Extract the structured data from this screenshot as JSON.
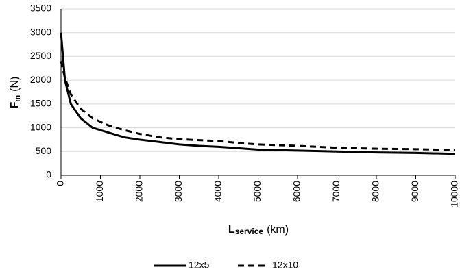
{
  "chart_data": {
    "type": "line",
    "ylabel": [
      "F",
      "m",
      "(N)"
    ],
    "xlabel": [
      "L",
      "service",
      "(km)"
    ],
    "x": [
      0,
      100,
      250,
      500,
      800,
      1200,
      1600,
      2000,
      2500,
      3000,
      3500,
      4000,
      4500,
      5000,
      6000,
      7000,
      8000,
      9000,
      10000
    ],
    "series": [
      {
        "name": "12x5",
        "color": "#000000",
        "dash": false,
        "values": [
          3000,
          2000,
          1500,
          1200,
          1000,
          900,
          800,
          750,
          700,
          650,
          620,
          600,
          570,
          540,
          520,
          500,
          480,
          470,
          450
        ]
      },
      {
        "name": "12x10",
        "color": "#000000",
        "dash": true,
        "values": [
          2400,
          2050,
          1700,
          1400,
          1200,
          1050,
          950,
          870,
          800,
          760,
          740,
          720,
          680,
          650,
          620,
          580,
          560,
          550,
          530
        ]
      }
    ],
    "xlim": [
      0,
      10000
    ],
    "xticks": [
      0,
      1000,
      2000,
      3000,
      4000,
      5000,
      6000,
      7000,
      8000,
      9000,
      10000
    ],
    "ylim": [
      0,
      3500
    ],
    "yticks": [
      0,
      500,
      1000,
      1500,
      2000,
      2500,
      3000,
      3500
    ],
    "grid": true,
    "legend": "bottom"
  }
}
